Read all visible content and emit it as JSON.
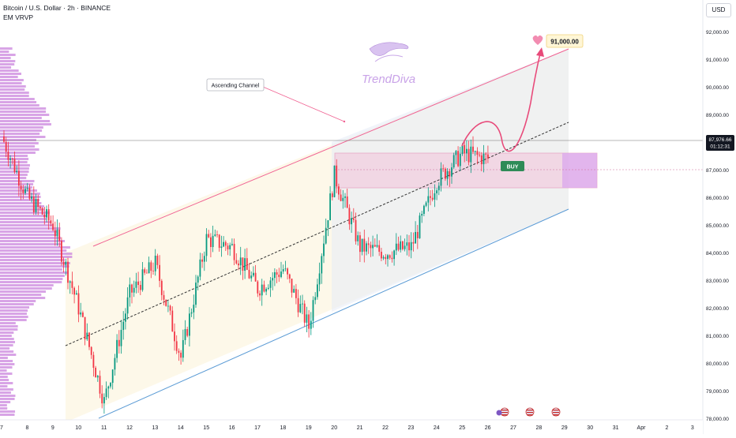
{
  "header": {
    "symbol_title": "Bitcoin / U.S. Dollar · 2h · BINANCE",
    "indicator": "EM VRVP"
  },
  "price_axis": {
    "currency_button": "USD",
    "ticks": [
      "92,000.00",
      "91,000.00",
      "90,000.00",
      "89,000.00",
      "88,000.00",
      "87,000.00",
      "86,000.00",
      "85,000.00",
      "84,000.00",
      "83,000.00",
      "82,000.00",
      "81,000.00",
      "80,000.00",
      "79,000.00",
      "78,000.00"
    ],
    "current_price": "87,976.66",
    "countdown": "01:12:31"
  },
  "time_axis": {
    "ticks": [
      "7",
      "8",
      "9",
      "10",
      "11",
      "12",
      "13",
      "14",
      "15",
      "16",
      "17",
      "18",
      "19",
      "20",
      "21",
      "22",
      "23",
      "24",
      "25",
      "26",
      "27",
      "28",
      "29",
      "30",
      "31",
      "Apr",
      "2",
      "3"
    ]
  },
  "annotations": {
    "channel_label": "Ascending Channel",
    "target_label": "91,000.00",
    "buy_label": "BUY",
    "logo_text": "TrendDiva"
  },
  "chart_data": {
    "type": "candlestick",
    "symbol": "BTCUSD",
    "interval": "2h",
    "exchange": "BINANCE",
    "y_range": [
      78000,
      92400
    ],
    "current_price": 87976.66,
    "target_price": 91000,
    "buy_zone": [
      86250,
      87550
    ],
    "close_path": [
      {
        "date": "Mar 7",
        "price": 88200
      },
      {
        "date": "Mar 8",
        "price": 86000
      },
      {
        "date": "Mar 9",
        "price": 85000
      },
      {
        "date": "Mar 10",
        "price": 82000
      },
      {
        "date": "Mar 11",
        "price": 78600
      },
      {
        "date": "Mar 12",
        "price": 82500
      },
      {
        "date": "Mar 13",
        "price": 83600
      },
      {
        "date": "Mar 14",
        "price": 80200
      },
      {
        "date": "Mar 15",
        "price": 84500
      },
      {
        "date": "Mar 16",
        "price": 84200
      },
      {
        "date": "Mar 17",
        "price": 82700
      },
      {
        "date": "Mar 18",
        "price": 83400
      },
      {
        "date": "Mar 19",
        "price": 81300
      },
      {
        "date": "Mar 20",
        "price": 86800
      },
      {
        "date": "Mar 21",
        "price": 84200
      },
      {
        "date": "Mar 22",
        "price": 84000
      },
      {
        "date": "Mar 23",
        "price": 84200
      },
      {
        "date": "Mar 24",
        "price": 86600
      },
      {
        "date": "Mar 25",
        "price": 87600
      },
      {
        "date": "Mar 26",
        "price": 87400
      }
    ],
    "colors": {
      "up": "#089981",
      "down": "#f23645",
      "channel_upper": "#f06292",
      "channel_lower": "#5b9bd5",
      "volume_profile": "#c77ddb"
    }
  }
}
